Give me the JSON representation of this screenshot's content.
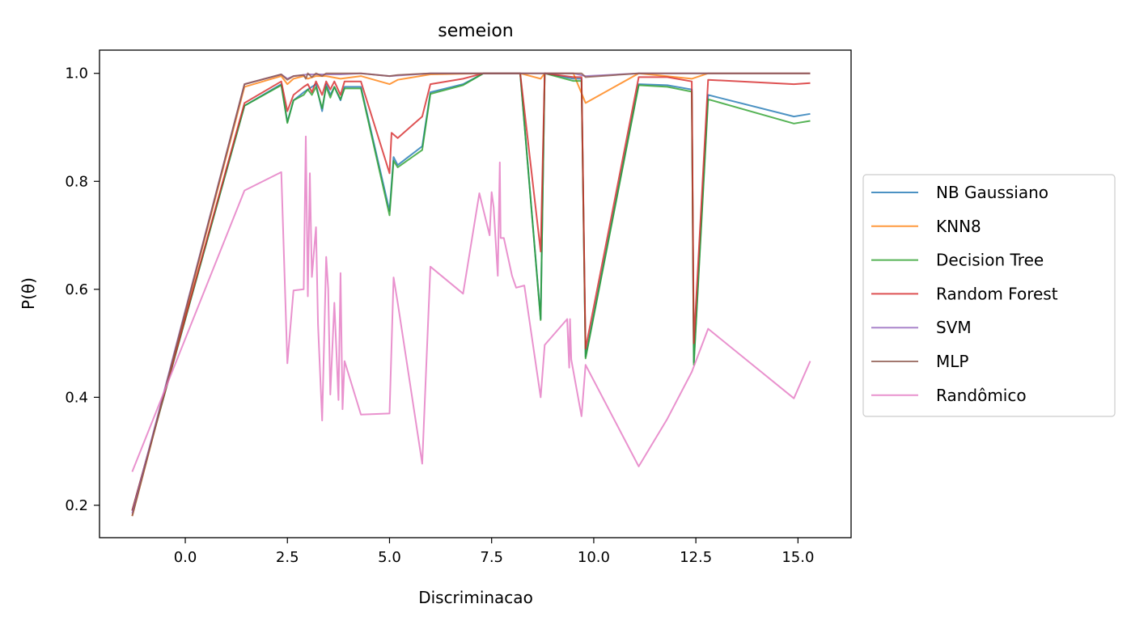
{
  "chart_data": {
    "type": "line",
    "title": "semeion",
    "xlabel": "Discriminacao",
    "ylabel": "P(θ)",
    "xlim": [
      -2.1,
      16.3
    ],
    "ylim": [
      0.14,
      1.043
    ],
    "xticks": [
      0.0,
      2.5,
      5.0,
      7.5,
      10.0,
      12.5,
      15.0
    ],
    "xtick_labels": [
      "0.0",
      "2.5",
      "5.0",
      "7.5",
      "10.0",
      "12.5",
      "15.0"
    ],
    "yticks": [
      0.2,
      0.4,
      0.6,
      0.8,
      1.0
    ],
    "ytick_labels": [
      "0.2",
      "0.4",
      "0.6",
      "0.8",
      "1.0"
    ],
    "grid": false,
    "legend_position": "outside-right",
    "series": [
      {
        "name": "NB Gaussiano",
        "color": "#1f77b4",
        "x": [
          -1.3,
          1.45,
          2.35,
          2.5,
          2.65,
          2.9,
          3.0,
          3.1,
          3.2,
          3.35,
          3.45,
          3.55,
          3.65,
          3.8,
          3.9,
          4.0,
          4.3,
          5.0,
          5.1,
          5.2,
          5.8,
          6.0,
          6.8,
          7.3,
          8.2,
          8.7,
          8.8,
          9.5,
          9.7,
          9.8,
          11.1,
          11.8,
          12.4,
          12.45,
          12.8,
          14.9,
          15.3
        ],
        "y": [
          0.19,
          0.94,
          0.98,
          0.91,
          0.95,
          0.965,
          0.97,
          0.975,
          0.98,
          0.93,
          0.98,
          0.96,
          0.975,
          0.95,
          0.975,
          0.975,
          0.975,
          0.745,
          0.845,
          0.83,
          0.865,
          0.965,
          0.98,
          1.0,
          1.0,
          0.545,
          1.0,
          0.99,
          0.99,
          0.475,
          0.98,
          0.978,
          0.97,
          0.465,
          0.96,
          0.92,
          0.925
        ]
      },
      {
        "name": "KNN8",
        "color": "#ff7f0e",
        "x": [
          -1.3,
          1.45,
          2.35,
          2.5,
          2.65,
          2.9,
          3.0,
          3.2,
          3.45,
          3.8,
          4.3,
          5.0,
          5.2,
          6.0,
          7.3,
          8.2,
          8.7,
          8.8,
          9.5,
          9.8,
          11.1,
          12.4,
          12.8,
          15.3
        ],
        "y": [
          0.18,
          0.975,
          0.995,
          0.98,
          0.99,
          0.995,
          0.99,
          0.995,
          0.995,
          0.99,
          0.995,
          0.98,
          0.988,
          0.998,
          1.0,
          1.0,
          0.99,
          1.0,
          1.0,
          0.945,
          1.0,
          0.99,
          1.0,
          1.0
        ]
      },
      {
        "name": "Decision Tree",
        "color": "#2ca02c",
        "x": [
          -1.3,
          1.45,
          2.35,
          2.5,
          2.65,
          2.9,
          3.0,
          3.1,
          3.2,
          3.35,
          3.45,
          3.55,
          3.65,
          3.8,
          3.9,
          4.0,
          4.3,
          5.0,
          5.1,
          5.2,
          5.8,
          6.0,
          6.8,
          7.3,
          8.2,
          8.7,
          8.8,
          9.5,
          9.7,
          9.8,
          11.1,
          11.8,
          12.4,
          12.45,
          12.8,
          14.9,
          15.3
        ],
        "y": [
          0.19,
          0.94,
          0.978,
          0.908,
          0.95,
          0.96,
          0.97,
          0.96,
          0.975,
          0.935,
          0.975,
          0.955,
          0.975,
          0.952,
          0.972,
          0.972,
          0.972,
          0.737,
          0.838,
          0.826,
          0.858,
          0.962,
          0.978,
          1.0,
          1.0,
          0.543,
          1.0,
          0.986,
          0.986,
          0.472,
          0.978,
          0.975,
          0.966,
          0.46,
          0.952,
          0.907,
          0.912
        ]
      },
      {
        "name": "Random Forest",
        "color": "#d62728",
        "x": [
          -1.3,
          1.45,
          2.35,
          2.5,
          2.65,
          2.9,
          3.0,
          3.1,
          3.2,
          3.35,
          3.45,
          3.55,
          3.65,
          3.8,
          3.9,
          4.3,
          5.0,
          5.05,
          5.2,
          5.8,
          6.0,
          6.8,
          7.3,
          8.2,
          8.7,
          8.8,
          9.5,
          9.7,
          9.8,
          11.1,
          11.8,
          12.4,
          12.45,
          12.8,
          14.9,
          15.3
        ],
        "y": [
          0.19,
          0.945,
          0.985,
          0.93,
          0.96,
          0.975,
          0.98,
          0.965,
          0.985,
          0.96,
          0.985,
          0.97,
          0.985,
          0.96,
          0.985,
          0.985,
          0.815,
          0.89,
          0.88,
          0.92,
          0.98,
          0.99,
          1.0,
          1.0,
          0.67,
          1.0,
          0.993,
          0.993,
          0.49,
          0.993,
          0.993,
          0.985,
          0.5,
          0.988,
          0.98,
          0.982
        ]
      },
      {
        "name": "SVM",
        "color": "#9467bd",
        "x": [
          -1.3,
          1.45,
          2.35,
          2.5,
          2.65,
          3.0,
          3.35,
          3.8,
          4.3,
          5.0,
          6.0,
          7.3,
          8.2,
          8.8,
          9.5,
          9.8,
          11.1,
          12.4,
          15.3
        ],
        "y": [
          0.185,
          0.98,
          0.998,
          0.99,
          0.995,
          0.998,
          0.998,
          0.998,
          1.0,
          0.995,
          1.0,
          1.0,
          1.0,
          1.0,
          1.0,
          0.995,
          1.0,
          1.0,
          1.0
        ]
      },
      {
        "name": "MLP",
        "color": "#8c564b",
        "x": [
          -1.3,
          1.45,
          2.35,
          2.5,
          2.65,
          2.9,
          2.95,
          3.0,
          3.1,
          3.2,
          3.35,
          3.45,
          3.8,
          4.3,
          5.0,
          5.2,
          6.0,
          7.3,
          8.2,
          8.7,
          8.8,
          9.4,
          9.7,
          9.8,
          11.1,
          12.4,
          12.8,
          15.3
        ],
        "y": [
          0.18,
          0.98,
          0.998,
          0.988,
          0.995,
          0.997,
          0.99,
          1.0,
          0.993,
          1.0,
          0.995,
          1.0,
          1.0,
          1.0,
          0.995,
          0.997,
          1.0,
          1.0,
          1.0,
          1.0,
          1.0,
          1.0,
          1.0,
          0.993,
          1.0,
          1.0,
          1.0,
          1.0
        ]
      },
      {
        "name": "Randômico",
        "color": "#e377c2",
        "x": [
          -1.3,
          1.45,
          2.35,
          2.5,
          2.65,
          2.9,
          2.95,
          3.0,
          3.05,
          3.1,
          3.2,
          3.25,
          3.35,
          3.45,
          3.5,
          3.55,
          3.65,
          3.75,
          3.8,
          3.85,
          3.9,
          4.3,
          5.0,
          5.1,
          5.2,
          5.8,
          6.0,
          6.8,
          7.2,
          7.45,
          7.5,
          7.55,
          7.65,
          7.7,
          7.72,
          7.8,
          8.0,
          8.1,
          8.3,
          8.7,
          8.8,
          9.35,
          9.4,
          9.42,
          9.45,
          9.7,
          9.8,
          11.1,
          11.8,
          12.4,
          12.8,
          14.9,
          15.3
        ],
        "y": [
          0.262,
          0.783,
          0.817,
          0.463,
          0.598,
          0.6,
          0.883,
          0.587,
          0.815,
          0.623,
          0.715,
          0.535,
          0.357,
          0.66,
          0.6,
          0.405,
          0.575,
          0.395,
          0.63,
          0.378,
          0.467,
          0.368,
          0.37,
          0.622,
          0.575,
          0.277,
          0.642,
          0.592,
          0.778,
          0.7,
          0.78,
          0.752,
          0.625,
          0.835,
          0.695,
          0.695,
          0.625,
          0.603,
          0.607,
          0.4,
          0.497,
          0.545,
          0.455,
          0.545,
          0.47,
          0.365,
          0.46,
          0.272,
          0.36,
          0.447,
          0.527,
          0.398,
          0.467
        ]
      }
    ]
  }
}
